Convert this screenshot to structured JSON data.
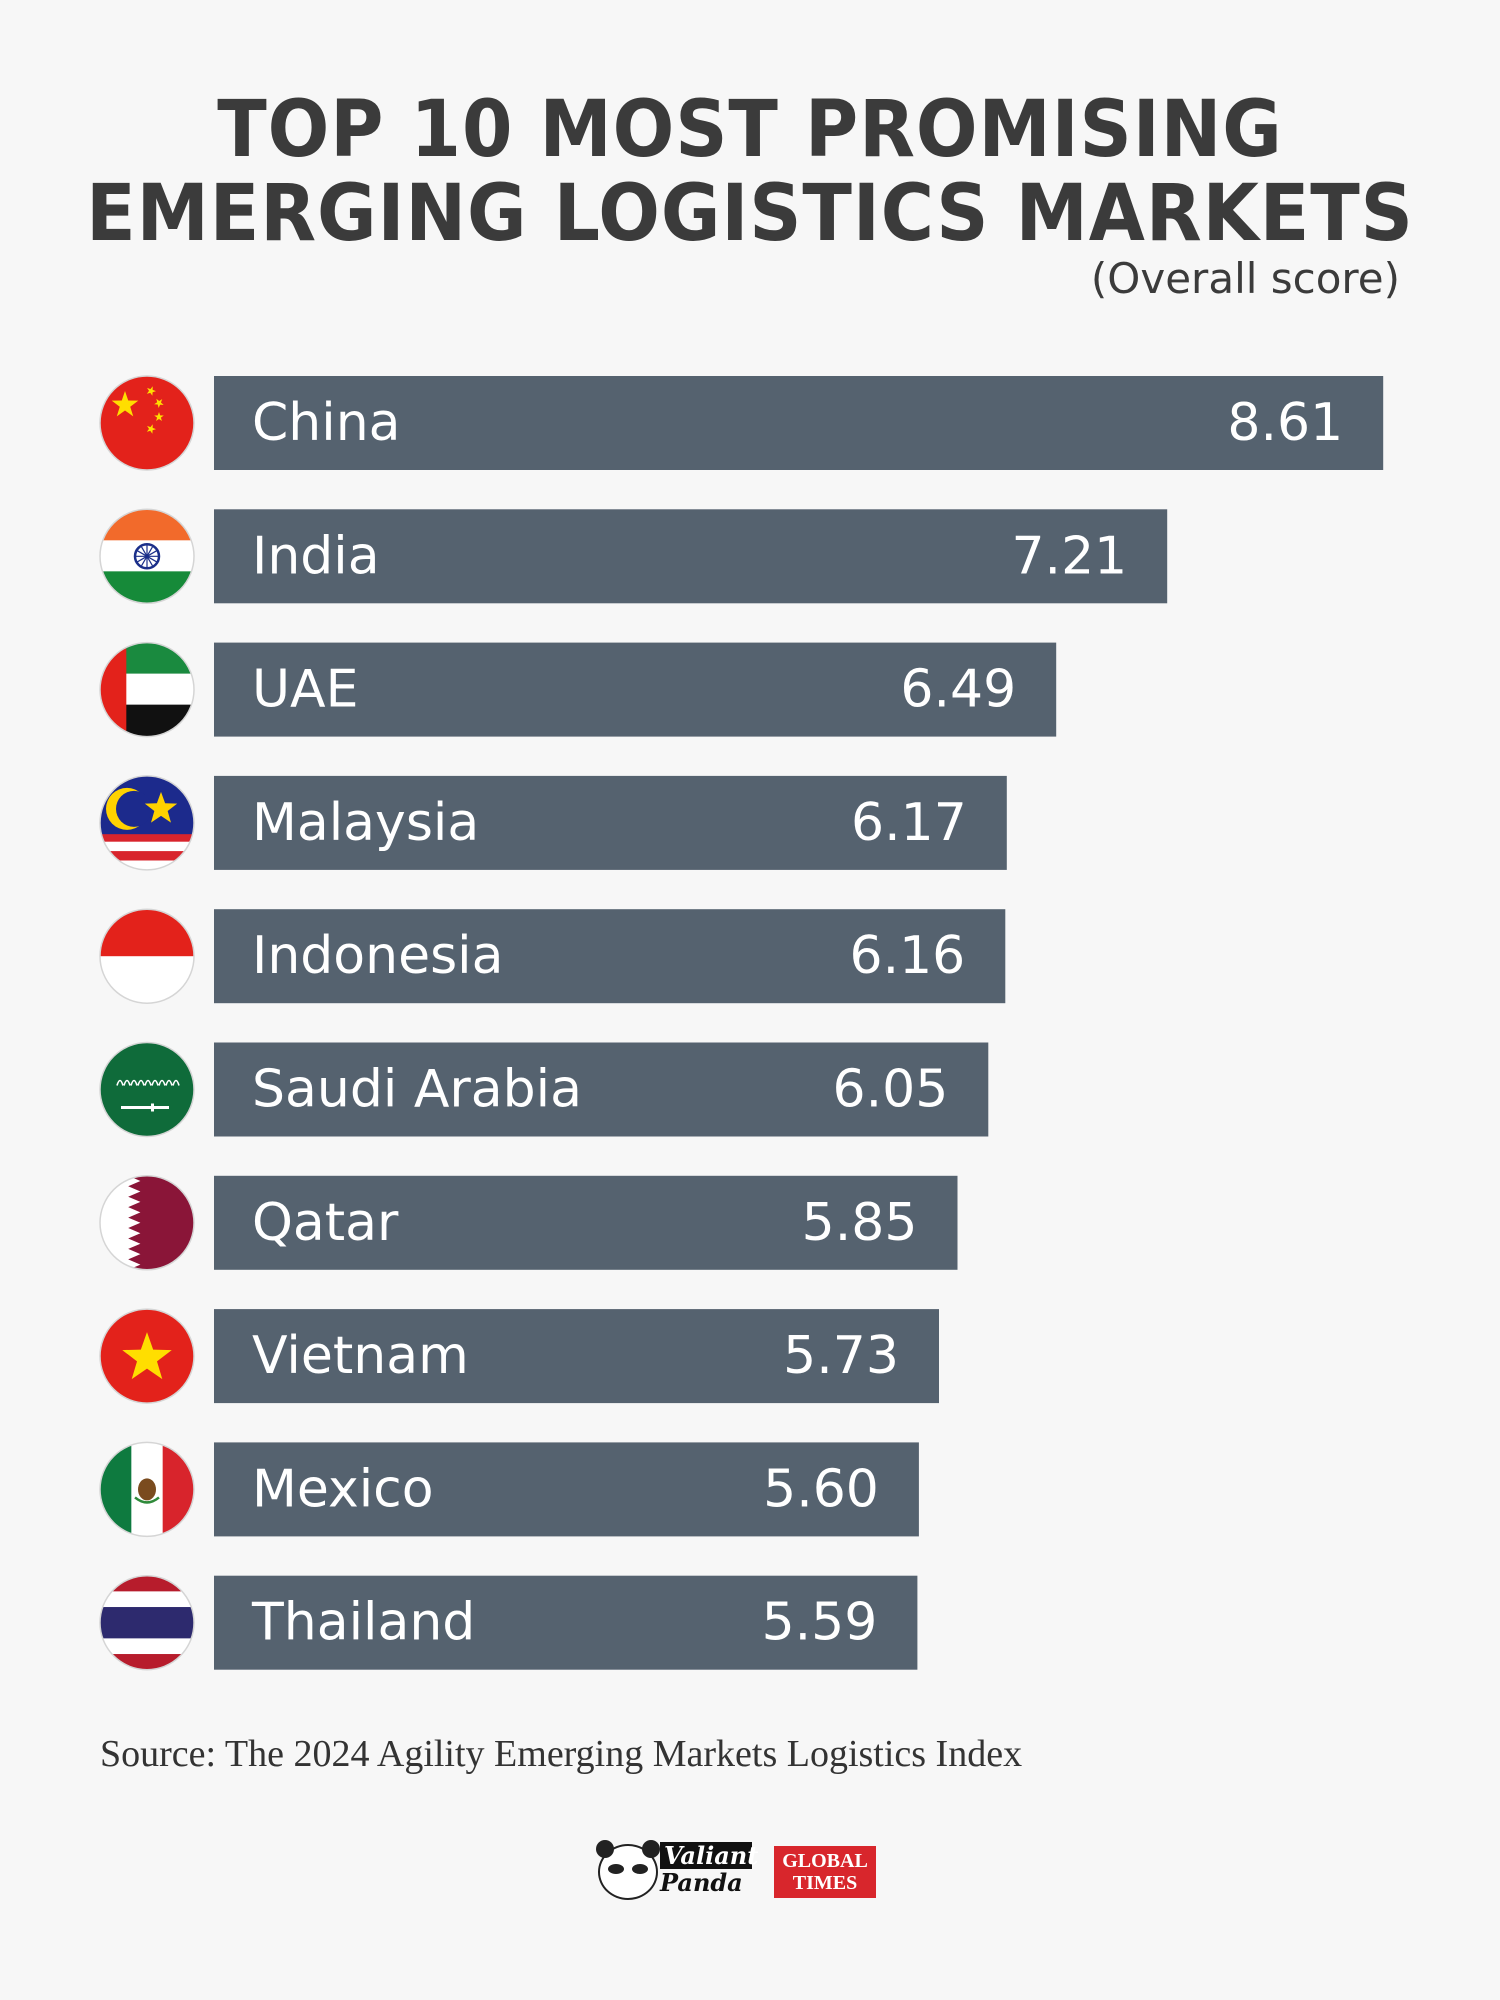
{
  "title_line1": "TOP 10 MOST PROMISING",
  "title_line2": "EMERGING LOGISTICS MARKETS",
  "subtitle": "(Overall score)",
  "source": "Source: The 2024 Agility Emerging Markets Logistics Index",
  "logos": {
    "valiant_line1": "Valiant",
    "valiant_line2": "Panda",
    "gt_line1": "GLOBAL",
    "gt_line2": "TIMES"
  },
  "colors": {
    "bar": "#55626f",
    "bar_text": "#ffffff",
    "title_text": "#3b3b3b",
    "background": "#f7f7f7"
  },
  "chart_data": {
    "type": "bar",
    "orientation": "horizontal",
    "title": "TOP 10 MOST PROMISING EMERGING LOGISTICS MARKETS",
    "subtitle": "(Overall score)",
    "categories": [
      "China",
      "India",
      "UAE",
      "Malaysia",
      "Indonesia",
      "Saudi Arabia",
      "Qatar",
      "Vietnam",
      "Mexico",
      "Thailand"
    ],
    "values": [
      8.61,
      7.21,
      6.49,
      6.17,
      6.16,
      6.05,
      5.85,
      5.73,
      5.6,
      5.59
    ],
    "value_labels": [
      "8.61",
      "7.21",
      "6.49",
      "6.17",
      "6.16",
      "6.05",
      "5.85",
      "5.73",
      "5.60",
      "5.59"
    ],
    "flags": [
      "china-flag-icon",
      "india-flag-icon",
      "uae-flag-icon",
      "malaysia-flag-icon",
      "indonesia-flag-icon",
      "saudi-arabia-flag-icon",
      "qatar-flag-icon",
      "vietnam-flag-icon",
      "mexico-flag-icon",
      "thailand-flag-icon"
    ],
    "grid": false,
    "legend": "none"
  }
}
